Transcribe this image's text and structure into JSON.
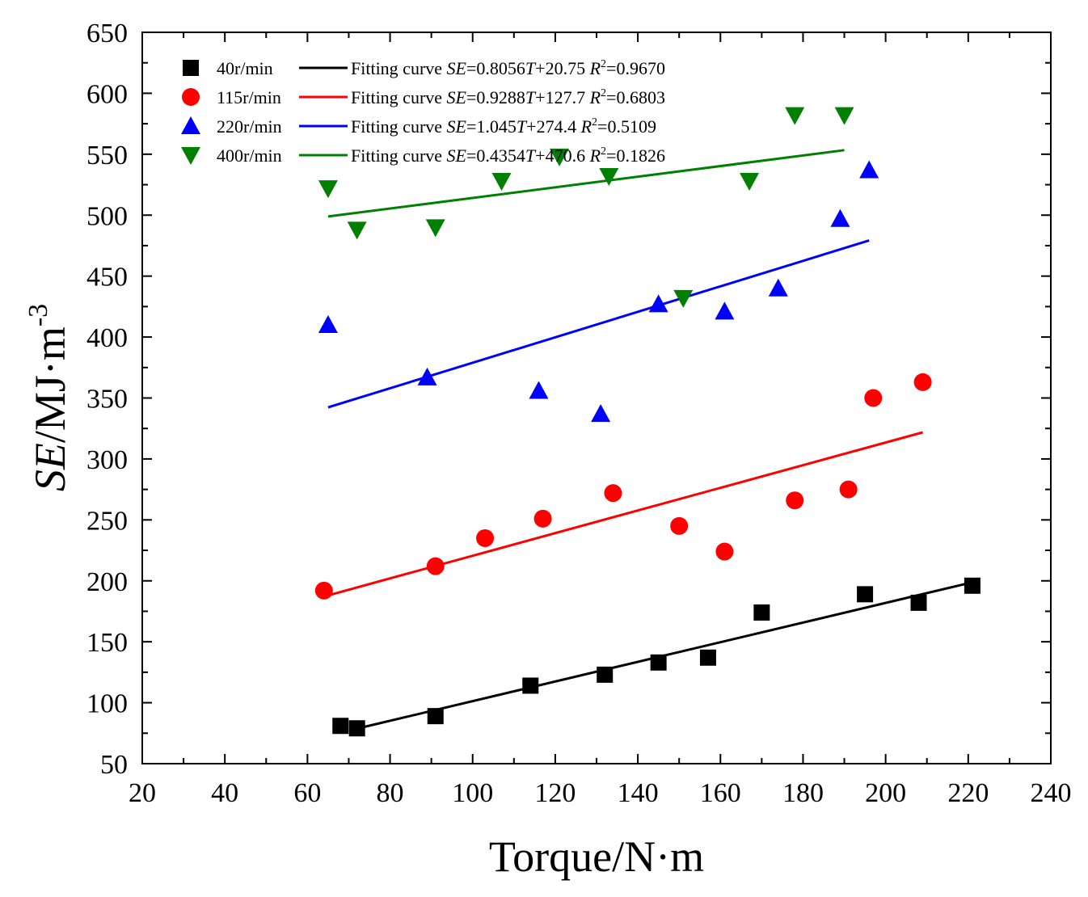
{
  "chart_data": {
    "type": "scatter",
    "title": "",
    "xlabel": "Torque/N·m",
    "ylabel_italic": "SE",
    "ylabel_rest": "/MJ·m",
    "ylabel_sup": "-3",
    "xlim": [
      20,
      240
    ],
    "ylim": [
      50,
      650
    ],
    "x_ticks": [
      "20",
      "40",
      "60",
      "80",
      "100",
      "120",
      "140",
      "160",
      "180",
      "200",
      "220",
      "240"
    ],
    "y_ticks": [
      "50",
      "100",
      "150",
      "200",
      "250",
      "300",
      "350",
      "400",
      "450",
      "500",
      "550",
      "600",
      "650"
    ],
    "grid": false,
    "legend_position": "top-left",
    "series": [
      {
        "name": "40r/min",
        "marker": "square",
        "color": "#000000",
        "points": [
          [
            68,
            81
          ],
          [
            72,
            79
          ],
          [
            91,
            89
          ],
          [
            114,
            114
          ],
          [
            132,
            123
          ],
          [
            145,
            133
          ],
          [
            157,
            137
          ],
          [
            170,
            174
          ],
          [
            195,
            189
          ],
          [
            208,
            182
          ],
          [
            221,
            196
          ]
        ],
        "fit": {
          "slope": 0.8056,
          "intercept": 20.75,
          "x_range": [
            72,
            221
          ]
        },
        "fit_label": "Fitting curve ",
        "fit_var": "SE",
        "fit_formula": "=0.8056",
        "fit_T": "T",
        "fit_intercept": "+20.75 ",
        "fit_R": "R",
        "fit_R_sup": "2",
        "fit_R_val": "=0.9670"
      },
      {
        "name": "115r/min",
        "marker": "circle",
        "color": "#ff0000",
        "points": [
          [
            64,
            192
          ],
          [
            91,
            212
          ],
          [
            103,
            235
          ],
          [
            117,
            251
          ],
          [
            134,
            272
          ],
          [
            150,
            245
          ],
          [
            161,
            224
          ],
          [
            178,
            266
          ],
          [
            191,
            275
          ],
          [
            197,
            350
          ],
          [
            209,
            363
          ]
        ],
        "fit": {
          "slope": 0.9288,
          "intercept": 127.7,
          "x_range": [
            64,
            209
          ]
        },
        "fit_label": "Fitting curve ",
        "fit_var": "SE",
        "fit_formula": "=0.9288",
        "fit_T": "T",
        "fit_intercept": "+127.7 ",
        "fit_R": "R",
        "fit_R_sup": "2",
        "fit_R_val": "=0.6803"
      },
      {
        "name": "220r/min",
        "marker": "triangle-up",
        "color": "#0000ff",
        "points": [
          [
            65,
            410
          ],
          [
            89,
            367
          ],
          [
            116,
            356
          ],
          [
            131,
            337
          ],
          [
            145,
            427
          ],
          [
            161,
            421
          ],
          [
            174,
            440
          ],
          [
            189,
            497
          ],
          [
            196,
            537
          ]
        ],
        "fit": {
          "slope": 1.045,
          "intercept": 274.4,
          "x_range": [
            65,
            196
          ]
        },
        "fit_label": "Fitting curve ",
        "fit_var": "SE",
        "fit_formula": "=1.045",
        "fit_T": "T",
        "fit_intercept": "+274.4  ",
        "fit_R": "R",
        "fit_R_sup": "2",
        "fit_R_val": "=0.5109"
      },
      {
        "name": "400r/min",
        "marker": "triangle-down",
        "color": "#008000",
        "points": [
          [
            65,
            522
          ],
          [
            72,
            488
          ],
          [
            91,
            490
          ],
          [
            107,
            528
          ],
          [
            121,
            548
          ],
          [
            133,
            532
          ],
          [
            151,
            432
          ],
          [
            167,
            528
          ],
          [
            178,
            582
          ],
          [
            190,
            582
          ]
        ],
        "fit": {
          "slope": 0.4354,
          "intercept": 470.6,
          "x_range": [
            65,
            190
          ]
        },
        "fit_label": "Fitting curve ",
        "fit_var": "SE",
        "fit_formula": "=0.4354",
        "fit_T": "T",
        "fit_intercept": "+470.6 ",
        "fit_R": "R",
        "fit_R_sup": "2",
        "fit_R_val": "=0.1826"
      }
    ]
  }
}
